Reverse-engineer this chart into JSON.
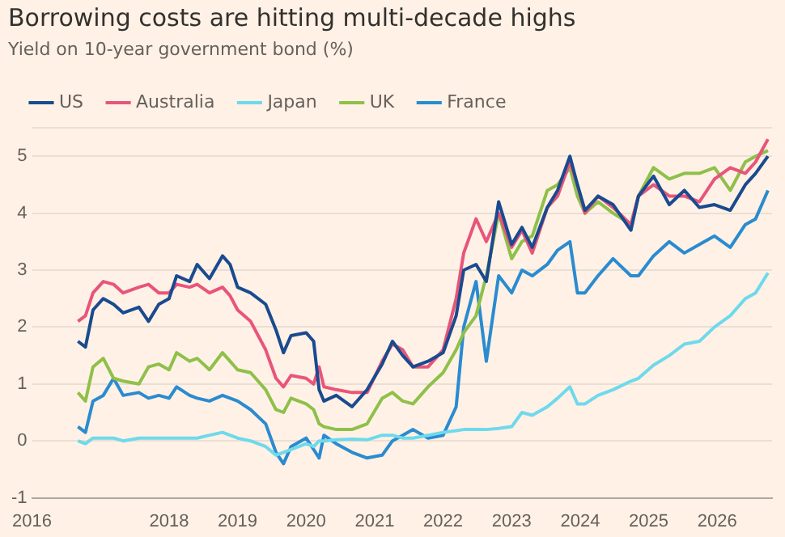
{
  "chart_data": {
    "type": "line",
    "title": "Borrowing costs are hitting multi-decade highs",
    "subtitle": "Yield on 10-year government bond (%)",
    "x": [
      2016.67,
      2016.78,
      2016.89,
      2017.04,
      2017.19,
      2017.33,
      2017.56,
      2017.7,
      2017.85,
      2018.0,
      2018.11,
      2018.3,
      2018.41,
      2018.59,
      2018.78,
      2018.89,
      2019.0,
      2019.19,
      2019.41,
      2019.56,
      2019.67,
      2019.78,
      2020.0,
      2020.11,
      2020.19,
      2020.26,
      2020.44,
      2020.67,
      2020.89,
      2021.11,
      2021.26,
      2021.41,
      2021.56,
      2021.78,
      2022.0,
      2022.19,
      2022.3,
      2022.48,
      2022.63,
      2022.81,
      2023.0,
      2023.15,
      2023.3,
      2023.52,
      2023.67,
      2023.85,
      2023.96,
      2024.07,
      2024.26,
      2024.48,
      2024.74,
      2024.85,
      2025.07,
      2025.3,
      2025.52,
      2025.74,
      2025.96,
      2026.19,
      2026.41,
      2026.56,
      2026.74
    ],
    "series": [
      {
        "name": "US",
        "color": "#1a4a8f",
        "values": [
          1.75,
          1.65,
          2.3,
          2.5,
          2.4,
          2.25,
          2.35,
          2.1,
          2.4,
          2.5,
          2.9,
          2.8,
          3.1,
          2.85,
          3.25,
          3.1,
          2.7,
          2.6,
          2.4,
          1.95,
          1.55,
          1.85,
          1.9,
          1.75,
          0.9,
          0.7,
          0.8,
          0.6,
          0.9,
          1.35,
          1.75,
          1.5,
          1.3,
          1.4,
          1.55,
          2.2,
          3.0,
          3.1,
          2.8,
          4.2,
          3.45,
          3.75,
          3.4,
          4.1,
          4.4,
          5.0,
          4.5,
          4.05,
          4.3,
          4.15,
          3.7,
          4.3,
          4.65,
          4.15,
          4.4,
          4.1,
          4.15,
          4.05,
          4.5,
          4.7,
          5.0
        ]
      },
      {
        "name": "Australia",
        "color": "#e8557a",
        "values": [
          2.1,
          2.2,
          2.6,
          2.8,
          2.75,
          2.6,
          2.7,
          2.75,
          2.6,
          2.6,
          2.75,
          2.7,
          2.75,
          2.6,
          2.7,
          2.55,
          2.3,
          2.1,
          1.6,
          1.1,
          0.95,
          1.15,
          1.1,
          1.0,
          1.3,
          0.95,
          0.9,
          0.85,
          0.85,
          1.4,
          1.7,
          1.6,
          1.3,
          1.3,
          1.6,
          2.5,
          3.3,
          3.9,
          3.5,
          4.0,
          3.4,
          3.7,
          3.3,
          4.1,
          4.3,
          4.9,
          4.5,
          4.0,
          4.3,
          4.1,
          3.8,
          4.3,
          4.5,
          4.3,
          4.3,
          4.2,
          4.6,
          4.8,
          4.7,
          4.9,
          5.3
        ]
      },
      {
        "name": "Japan",
        "color": "#6fd9ec",
        "values": [
          0.0,
          -0.05,
          0.05,
          0.05,
          0.05,
          0.0,
          0.05,
          0.05,
          0.05,
          0.05,
          0.05,
          0.05,
          0.05,
          0.1,
          0.15,
          0.1,
          0.05,
          0.0,
          -0.1,
          -0.25,
          -0.2,
          -0.15,
          -0.05,
          -0.1,
          0.0,
          0.0,
          0.02,
          0.03,
          0.02,
          0.1,
          0.1,
          0.05,
          0.05,
          0.1,
          0.15,
          0.18,
          0.2,
          0.2,
          0.2,
          0.22,
          0.25,
          0.5,
          0.45,
          0.6,
          0.75,
          0.95,
          0.65,
          0.65,
          0.8,
          0.9,
          1.05,
          1.1,
          1.33,
          1.5,
          1.7,
          1.75,
          2.0,
          2.2,
          2.5,
          2.6,
          2.95
        ]
      },
      {
        "name": "UK",
        "color": "#8fc04a",
        "values": [
          0.85,
          0.7,
          1.3,
          1.45,
          1.1,
          1.05,
          1.0,
          1.3,
          1.35,
          1.25,
          1.55,
          1.4,
          1.45,
          1.25,
          1.55,
          1.4,
          1.25,
          1.2,
          0.9,
          0.55,
          0.5,
          0.75,
          0.65,
          0.55,
          0.3,
          0.25,
          0.2,
          0.2,
          0.3,
          0.75,
          0.85,
          0.7,
          0.65,
          0.95,
          1.2,
          1.6,
          1.9,
          2.2,
          2.9,
          4.0,
          3.2,
          3.5,
          3.6,
          4.4,
          4.5,
          4.8,
          4.3,
          4.0,
          4.2,
          4.0,
          3.8,
          4.3,
          4.8,
          4.6,
          4.7,
          4.7,
          4.8,
          4.4,
          4.9,
          5.0,
          5.1
        ]
      },
      {
        "name": "France",
        "color": "#2a8bd0",
        "values": [
          0.25,
          0.15,
          0.7,
          0.8,
          1.1,
          0.8,
          0.85,
          0.75,
          0.8,
          0.75,
          0.95,
          0.8,
          0.75,
          0.7,
          0.8,
          0.75,
          0.7,
          0.55,
          0.3,
          -0.2,
          -0.4,
          -0.1,
          0.05,
          -0.15,
          -0.3,
          0.1,
          -0.05,
          -0.2,
          -0.3,
          -0.25,
          0.0,
          0.1,
          0.2,
          0.05,
          0.1,
          0.6,
          2.0,
          2.8,
          1.4,
          2.9,
          2.6,
          3.0,
          2.9,
          3.1,
          3.35,
          3.5,
          2.6,
          2.6,
          2.9,
          3.2,
          2.9,
          2.9,
          3.25,
          3.5,
          3.3,
          3.45,
          3.6,
          3.4,
          3.8,
          3.9,
          4.4
        ]
      }
    ],
    "xlim": [
      2016,
      2026.8
    ],
    "xticks": [
      2016,
      2018,
      2019,
      2020,
      2021,
      2022,
      2023,
      2024,
      2025,
      2026
    ],
    "ylim": [
      -1,
      5.5
    ],
    "yticks": [
      -1,
      0,
      1,
      2,
      3,
      4,
      5,
      {
        "value": 5.5,
        "label": null
      }
    ],
    "grid": "y",
    "legend": "top left",
    "marker": "none",
    "line_style": "solid"
  }
}
